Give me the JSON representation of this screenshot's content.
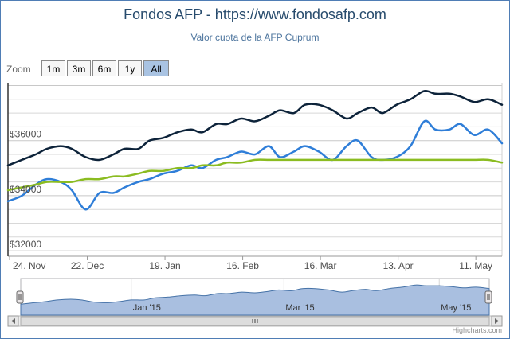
{
  "title": "Fondos AFP - https://www.fondosafp.com",
  "subtitle": "Valor cuota de la AFP Cuprum",
  "zoom": {
    "label": "Zoom",
    "buttons": [
      "1m",
      "3m",
      "6m",
      "1y",
      "All"
    ],
    "active": "All"
  },
  "credit": "Highcharts.com",
  "chart_data": {
    "type": "line",
    "title": "Fondos AFP - https://www.fondosafp.com",
    "subtitle": "Valor cuota de la AFP Cuprum",
    "xlabel": "",
    "ylabel": "",
    "x_tick_labels": [
      "24. Nov",
      "22. Dec",
      "19. Jan",
      "16. Feb",
      "16. Mar",
      "13. Apr",
      "11. May"
    ],
    "y_tick_labels": [
      "$32000",
      "$34000",
      "$36000"
    ],
    "y_ticks": [
      32000,
      34000,
      36000
    ],
    "ylim": [
      31800,
      38100
    ],
    "grid": true,
    "legend": "none",
    "x_days": [
      0,
      5,
      10,
      14,
      19,
      23,
      28,
      33,
      38,
      42,
      47,
      51,
      56,
      61,
      66,
      70,
      75,
      79,
      84,
      89,
      94,
      98,
      103,
      107,
      112,
      117,
      122,
      126,
      131,
      135,
      140,
      145,
      150,
      154,
      159,
      163,
      168,
      173,
      178
    ],
    "series": [
      {
        "color": "#0d233a",
        "values": [
          35100,
          35300,
          35500,
          35700,
          35800,
          35700,
          35400,
          35300,
          35500,
          35700,
          35700,
          36000,
          36100,
          36300,
          36400,
          36300,
          36600,
          36600,
          36800,
          36700,
          36900,
          37100,
          37000,
          37300,
          37300,
          37100,
          36800,
          37000,
          37200,
          37000,
          37300,
          37500,
          37800,
          37700,
          37700,
          37600,
          37400,
          37500,
          37300
        ]
      },
      {
        "color": "#2f7ed8",
        "values": [
          33800,
          34000,
          34400,
          34600,
          34500,
          34200,
          33500,
          34100,
          34100,
          34300,
          34500,
          34600,
          34800,
          34900,
          35100,
          35000,
          35300,
          35400,
          35600,
          35500,
          35800,
          35400,
          35600,
          35800,
          35600,
          35300,
          35800,
          36000,
          35400,
          35300,
          35400,
          35800,
          36700,
          36400,
          36400,
          36600,
          36200,
          36400,
          35900
        ]
      },
      {
        "color": "#8bbc21",
        "values": [
          34200,
          34300,
          34400,
          34500,
          34500,
          34500,
          34600,
          34600,
          34700,
          34700,
          34800,
          34900,
          34900,
          35000,
          35000,
          35100,
          35100,
          35200,
          35200,
          35300,
          35300,
          35300,
          35300,
          35300,
          35300,
          35300,
          35300,
          35300,
          35300,
          35300,
          35300,
          35300,
          35300,
          35300,
          35300,
          35300,
          35300,
          35300,
          35200
        ]
      }
    ],
    "navigator_tick_labels": [
      "Jan '15",
      "Mar '15",
      "May '15"
    ]
  }
}
